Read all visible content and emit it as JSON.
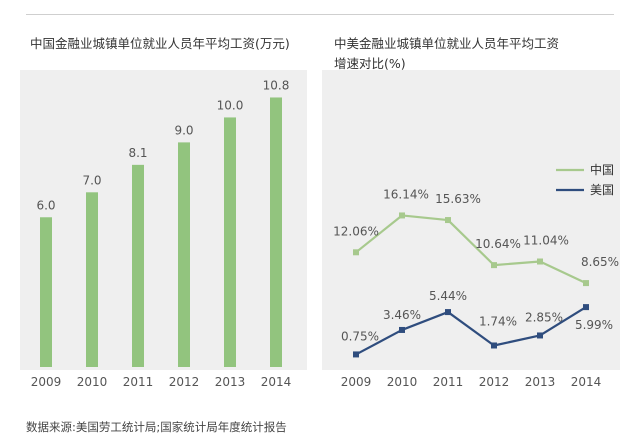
{
  "left_title": "中国金融业城镇单位就业人员年平均工资(万元)",
  "right_title_line1": "中美金融业城镇单位就业人员年平均工资",
  "right_title_line2": "增速对比(%)",
  "source": "数据来源:美国劳工统计局;国家统计局年度统计报告",
  "chart_data": [
    {
      "type": "bar",
      "title": "中国金融业城镇单位就业人员年平均工资(万元)",
      "categories": [
        "2009",
        "2010",
        "2011",
        "2012",
        "2013",
        "2014"
      ],
      "values": [
        6.0,
        7.0,
        8.1,
        9.0,
        10.0,
        10.8
      ],
      "value_labels": [
        "6.0",
        "7.0",
        "8.1",
        "9.0",
        "10.0",
        "10.8"
      ],
      "ylim": [
        0,
        11.5
      ],
      "grid": false,
      "color": "#92c47e"
    },
    {
      "type": "line",
      "title": "中美金融业城镇单位就业人员年平均工资增速对比(%)",
      "categories": [
        "2009",
        "2010",
        "2011",
        "2012",
        "2013",
        "2014"
      ],
      "series": [
        {
          "name": "中国",
          "values": [
            12.06,
            16.14,
            15.63,
            10.64,
            11.04,
            8.65
          ],
          "labels": [
            "12.06%",
            "16.14%",
            "15.63%",
            "10.64%",
            "11.04%",
            "8.65%"
          ],
          "color": "#a7c98d"
        },
        {
          "name": "美国",
          "values": [
            0.75,
            3.46,
            5.44,
            1.74,
            2.85,
            5.99
          ],
          "labels": [
            "0.75%",
            "3.46%",
            "5.44%",
            "1.74%",
            "2.85%",
            "5.99%"
          ],
          "color": "#2f4d7e"
        }
      ],
      "legend_position": "top-right",
      "grid": false
    }
  ]
}
